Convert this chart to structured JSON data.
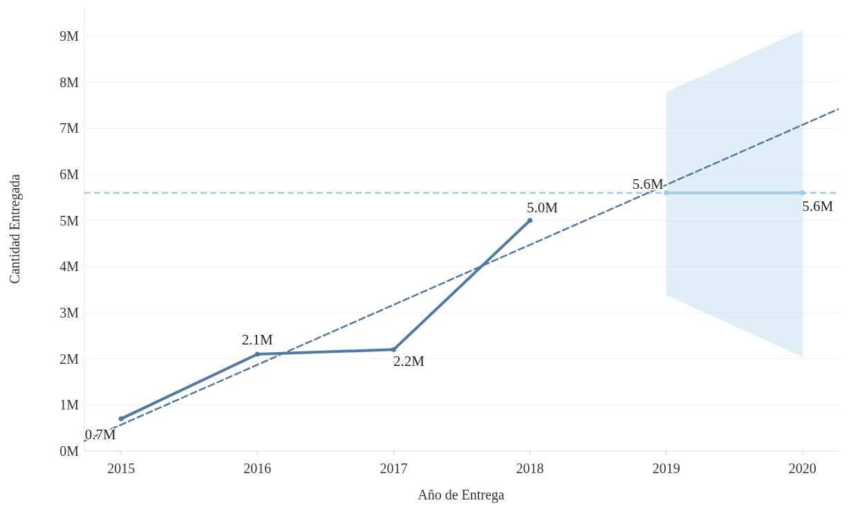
{
  "chart_data": {
    "type": "line",
    "xlabel": "Año de Entrega",
    "ylabel": "Cantidad Entregada",
    "x": [
      2015,
      2016,
      2017,
      2018
    ],
    "xlim": [
      2014.73,
      2020.26
    ],
    "xticks": [
      2015,
      2016,
      2017,
      2018,
      2019,
      2020
    ],
    "ylim": [
      0,
      9.63
    ],
    "yticks": [
      {
        "value": 0,
        "label": "0M"
      },
      {
        "value": 1,
        "label": "1M"
      },
      {
        "value": 2,
        "label": "2M"
      },
      {
        "value": 3,
        "label": "3M"
      },
      {
        "value": 4,
        "label": "4M"
      },
      {
        "value": 5,
        "label": "5M"
      },
      {
        "value": 6,
        "label": "6M"
      },
      {
        "value": 7,
        "label": "7M"
      },
      {
        "value": 8,
        "label": "8M"
      },
      {
        "value": 9,
        "label": "9M"
      }
    ],
    "grid": "y",
    "marker": "circle",
    "line_style": "solid",
    "series": [
      {
        "color": "#4e79a7",
        "values": [
          0.7,
          2.1,
          2.2,
          5.0
        ],
        "value_labels": [
          "0.7M",
          "2.1M",
          "2.2M",
          "5.0M"
        ]
      },
      {
        "color": "#a0cbe8",
        "x": [
          2019,
          2020
        ],
        "values": [
          5.6,
          5.6
        ],
        "lower": [
          3.38,
          2.04
        ],
        "upper": [
          7.78,
          9.13
        ],
        "value_labels": [
          "5.6M",
          "5.6M"
        ]
      },
      {
        "color": "#4e79a7",
        "x": [
          2014.73,
          2020.26
        ],
        "values": [
          0.22,
          7.41
        ],
        "marker": "none",
        "line_style": "dashed"
      }
    ],
    "ref_lines": [
      {
        "axis": "y",
        "value": 5.6,
        "color": "#a0cbe8",
        "line_style": "dashed"
      }
    ]
  }
}
